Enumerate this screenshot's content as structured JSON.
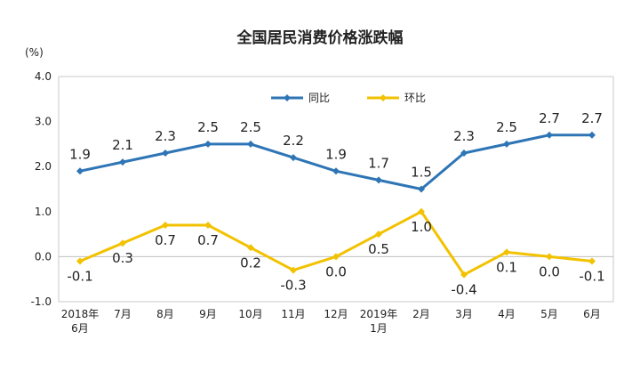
{
  "chart_data": {
    "type": "line",
    "title": "全国居民消费价格涨跌幅",
    "unit": "(%)",
    "categories": [
      [
        "2018年",
        "6月"
      ],
      [
        "7月"
      ],
      [
        "8月"
      ],
      [
        "9月"
      ],
      [
        "10月"
      ],
      [
        "11月"
      ],
      [
        "12月"
      ],
      [
        "2019年",
        "1月"
      ],
      [
        "2月"
      ],
      [
        "3月"
      ],
      [
        "4月"
      ],
      [
        "5月"
      ],
      [
        "6月"
      ]
    ],
    "ylim": [
      -1.0,
      4.0
    ],
    "yticks": [
      "4.0",
      "3.0",
      "2.0",
      "1.0",
      "0.0",
      "-1.0"
    ],
    "legend_position": "top-center",
    "grid": false,
    "series": [
      {
        "name": "同比",
        "color": "#2e75b6",
        "values": [
          1.9,
          2.1,
          2.3,
          2.5,
          2.5,
          2.2,
          1.9,
          1.7,
          1.5,
          2.3,
          2.5,
          2.7,
          2.7
        ],
        "labels": [
          "1.9",
          "2.1",
          "2.3",
          "2.5",
          "2.5",
          "2.2",
          "1.9",
          "1.7",
          "1.5",
          "2.3",
          "2.5",
          "2.7",
          "2.7"
        ]
      },
      {
        "name": "环比",
        "color": "#f2c200",
        "values": [
          -0.1,
          0.3,
          0.7,
          0.7,
          0.2,
          -0.3,
          0.0,
          0.5,
          1.0,
          -0.4,
          0.1,
          0.0,
          -0.1
        ],
        "labels": [
          "-0.1",
          "0.3",
          "0.7",
          "0.7",
          "0.2",
          "-0.3",
          "0.0",
          "0.5",
          "1.0",
          "-0.4",
          "0.1",
          "0.0",
          "-0.1"
        ]
      }
    ]
  }
}
